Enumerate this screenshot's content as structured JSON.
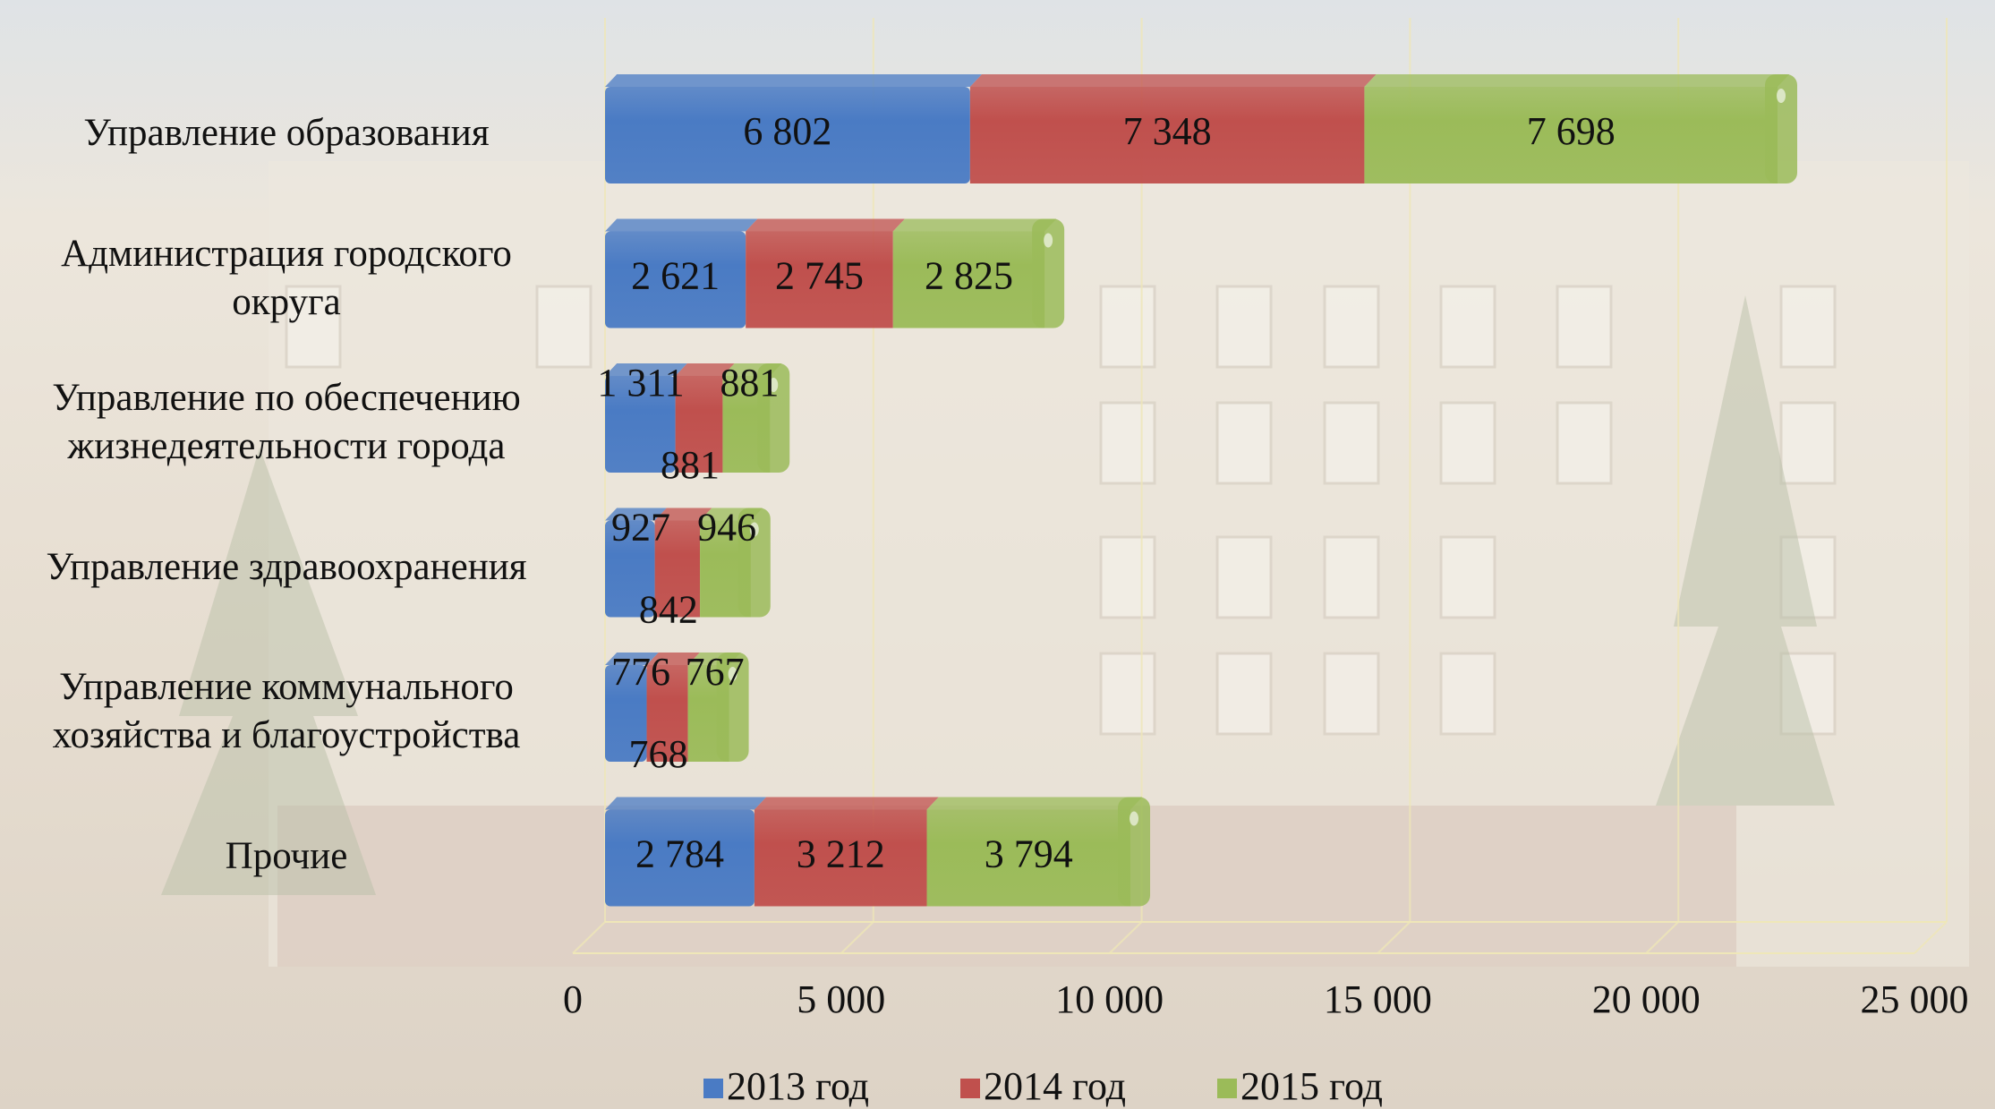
{
  "chart_data": {
    "type": "stacked-bar-horizontal",
    "categories": [
      "Управление образования",
      "Администрация городского\nокруга",
      "Управление по обеспечению\nжизнедеятельности города",
      "Управление здравоохранения",
      "Управление коммунального\nхозяйства и благоустройства",
      "Прочие"
    ],
    "series": [
      {
        "name": "2013 год",
        "color": "#4a7bc4",
        "values": [
          6802,
          2621,
          1311,
          927,
          776,
          2784
        ],
        "value_labels": [
          "6 802",
          "2 621",
          "1 311",
          "927",
          "776",
          "2 784"
        ]
      },
      {
        "name": "2014 год",
        "color": "#c0504d",
        "values": [
          7348,
          2745,
          881,
          842,
          768,
          3212
        ],
        "value_labels": [
          "7 348",
          "2 745",
          "881",
          "842",
          "768",
          "3 212"
        ]
      },
      {
        "name": "2015 год",
        "color": "#9bbb59",
        "values": [
          7698,
          2825,
          881,
          946,
          767,
          3794
        ],
        "value_labels": [
          "7 698",
          "2 825",
          "881",
          "946",
          "767",
          "3 794"
        ]
      }
    ],
    "xlim": [
      0,
      25000
    ],
    "xticks": [
      0,
      {
        "value": 5000,
        "label": "5 000"
      },
      {
        "value": 10000,
        "label": "10 000"
      },
      {
        "value": 15000,
        "label": "15 000"
      },
      {
        "value": 20000,
        "label": "20 000"
      },
      {
        "value": 25000,
        "label": "25 000"
      }
    ],
    "grid": true,
    "legend": "bottom"
  }
}
